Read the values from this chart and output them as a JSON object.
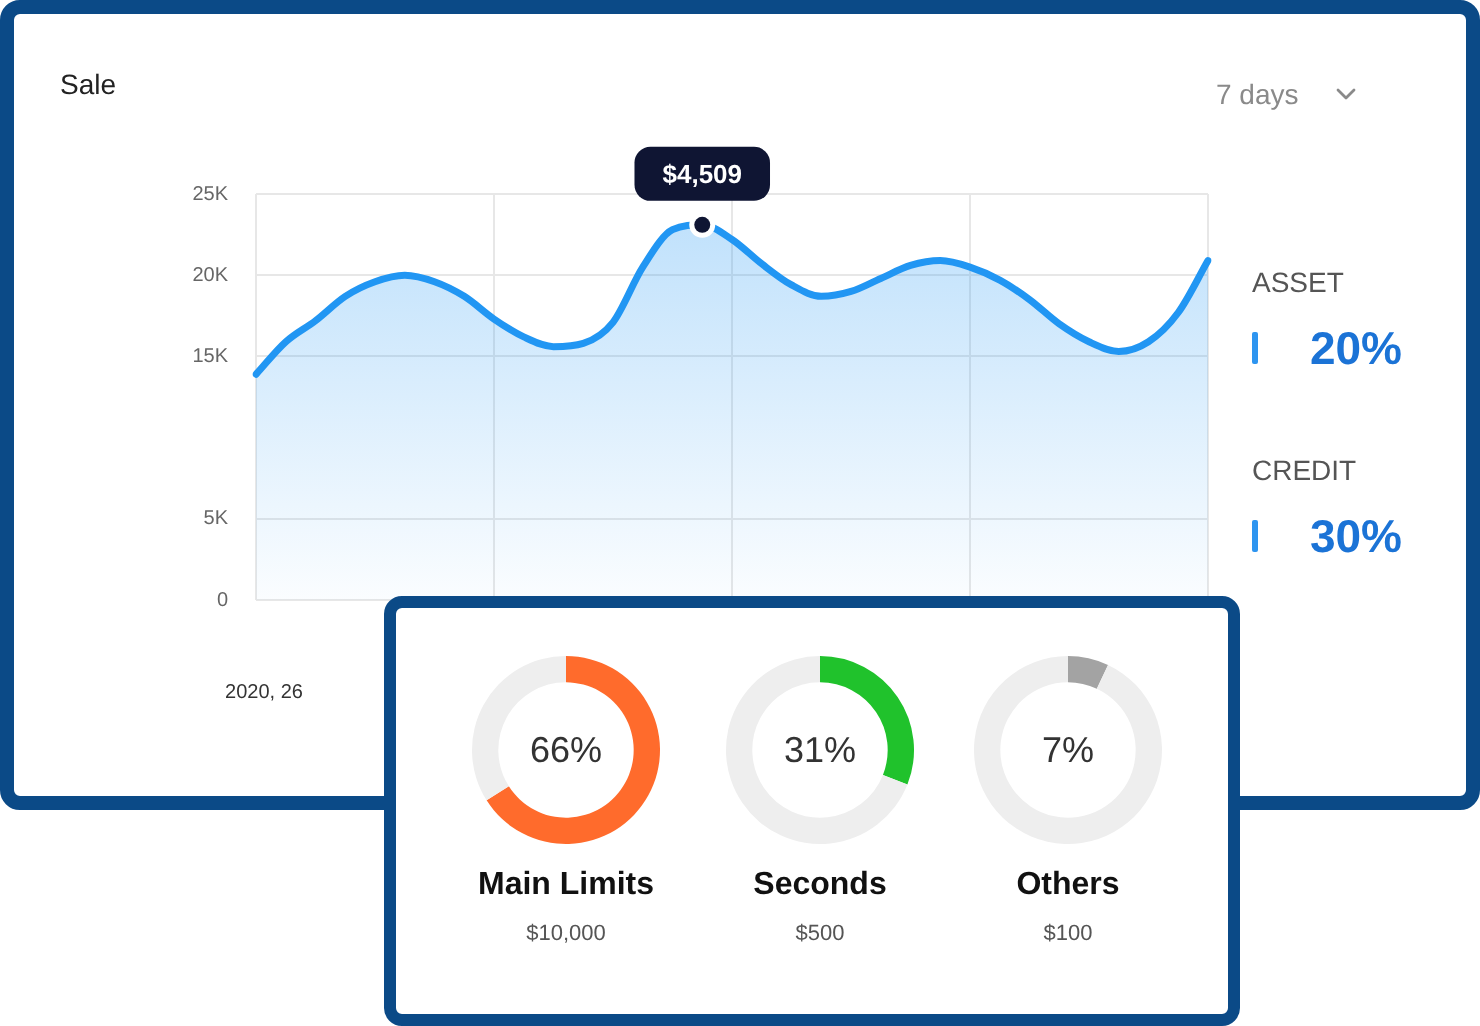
{
  "chart_data": [
    {
      "type": "area",
      "title": "Sale",
      "annotations": [
        "7 days",
        "2020, 26",
        {
          "text": "$4,509",
          "y": 23100
        }
      ],
      "categories": [
        null,
        null,
        null,
        null,
        null,
        null,
        null,
        null,
        null,
        null,
        null,
        null,
        null,
        null,
        null,
        null,
        null,
        null,
        null,
        null,
        null,
        null,
        null,
        null,
        null,
        null,
        null,
        null,
        null,
        null,
        null,
        null,
        null
      ],
      "values": [
        13900,
        15900,
        17200,
        18700,
        19600,
        20000,
        19600,
        18700,
        17300,
        16200,
        15600,
        15800,
        17100,
        20500,
        22800,
        23100,
        22200,
        20700,
        19400,
        18700,
        19000,
        19800,
        20600,
        20900,
        20500,
        19700,
        18500,
        17000,
        15900,
        15300,
        15900,
        17700,
        20900
      ],
      "color": "#2196f3",
      "ylim": [
        0,
        25000
      ],
      "yticks": [
        {
          "value": 0,
          "label": "0"
        },
        {
          "value": 5000,
          "label": "5K"
        },
        {
          "value": 15000,
          "label": "15K"
        },
        {
          "value": 20000,
          "label": "20K"
        },
        {
          "value": 25000,
          "label": "25K"
        }
      ],
      "tick_labels": "y",
      "grid": true
    },
    {
      "type": "other",
      "annotations": [
        "ASSET",
        "20%",
        "CREDIT",
        "30%"
      ]
    },
    {
      "type": "donut",
      "title": "Main Limits",
      "subtitle": "$10,000",
      "categories": [
        null,
        null
      ],
      "values": [
        66,
        34
      ],
      "colors": [
        "#ff6b2c",
        "#eeeeee"
      ],
      "value_labels": [
        "66%",
        null
      ]
    },
    {
      "type": "donut",
      "title": "Seconds",
      "subtitle": "$500",
      "categories": [
        null,
        null
      ],
      "values": [
        31,
        69
      ],
      "colors": [
        "#20c22c",
        "#eeeeee"
      ],
      "value_labels": [
        "31%",
        null
      ]
    },
    {
      "type": "donut",
      "title": "Others",
      "subtitle": "$100",
      "categories": [
        null,
        null
      ],
      "values": [
        7,
        93
      ],
      "colors": [
        "#a3a3a3",
        "#eeeeee"
      ],
      "value_labels": [
        "7%",
        null
      ]
    }
  ]
}
